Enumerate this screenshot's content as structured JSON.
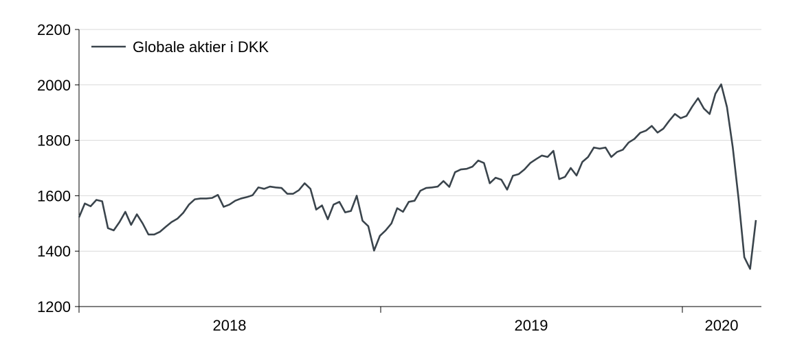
{
  "chart_data": {
    "type": "line",
    "x_labels": [
      "2018",
      "2019",
      "2020"
    ],
    "y_ticks": [
      1200,
      1400,
      1600,
      1800,
      2000,
      2200
    ],
    "ylim": [
      1200,
      2200
    ],
    "grid": true,
    "legend_position": "top-left",
    "colors": {
      "line": "#3a444c",
      "grid": "#d9d9d9",
      "axis": "#000000"
    },
    "series": [
      {
        "name": "Globale aktier i DKK",
        "values": [
          1522,
          1572,
          1562,
          1585,
          1580,
          1483,
          1475,
          1505,
          1542,
          1495,
          1533,
          1500,
          1460,
          1460,
          1470,
          1488,
          1505,
          1517,
          1538,
          1568,
          1587,
          1590,
          1590,
          1592,
          1603,
          1560,
          1568,
          1582,
          1590,
          1595,
          1602,
          1630,
          1625,
          1633,
          1630,
          1628,
          1607,
          1607,
          1620,
          1645,
          1625,
          1550,
          1565,
          1515,
          1568,
          1578,
          1540,
          1545,
          1600,
          1510,
          1490,
          1402,
          1455,
          1475,
          1500,
          1555,
          1542,
          1578,
          1582,
          1618,
          1628,
          1630,
          1633,
          1653,
          1632,
          1685,
          1695,
          1697,
          1705,
          1727,
          1718,
          1645,
          1665,
          1658,
          1622,
          1672,
          1678,
          1695,
          1718,
          1732,
          1745,
          1740,
          1762,
          1660,
          1668,
          1700,
          1673,
          1722,
          1740,
          1774,
          1770,
          1774,
          1740,
          1758,
          1766,
          1792,
          1805,
          1827,
          1835,
          1852,
          1828,
          1842,
          1870,
          1895,
          1880,
          1888,
          1922,
          1952,
          1915,
          1895,
          1968,
          2002,
          1920,
          1775,
          1590,
          1378,
          1336,
          1512
        ]
      }
    ]
  }
}
